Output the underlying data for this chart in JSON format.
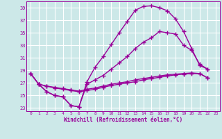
{
  "xlabel": "Windchill (Refroidissement éolien,°C)",
  "xlim": [
    -0.5,
    23.5
  ],
  "ylim": [
    22.5,
    40.0
  ],
  "yticks": [
    23,
    25,
    27,
    29,
    31,
    33,
    35,
    37,
    39
  ],
  "xticks": [
    0,
    1,
    2,
    3,
    4,
    5,
    6,
    7,
    8,
    9,
    10,
    11,
    12,
    13,
    14,
    15,
    16,
    17,
    18,
    19,
    20,
    21,
    22,
    23
  ],
  "bg_color": "#cce8e8",
  "grid_color": "#ffffff",
  "line_color": "#990099",
  "line_width": 1.0,
  "marker": "+",
  "marker_size": 4,
  "line1_x": [
    0,
    1,
    2,
    3,
    4,
    5,
    6,
    7,
    8,
    9,
    10,
    11,
    12,
    13,
    14,
    15,
    16,
    17,
    18,
    19,
    20,
    21,
    22
  ],
  "line1_y": [
    28.5,
    26.8,
    25.6,
    25.0,
    24.8,
    23.4,
    23.2,
    27.2,
    29.5,
    31.2,
    33.1,
    35.0,
    36.8,
    38.6,
    39.2,
    39.3,
    39.0,
    38.5,
    37.2,
    35.2,
    32.5,
    29.8,
    29.2
  ],
  "line2_x": [
    0,
    1,
    2,
    3,
    4,
    5,
    6,
    7,
    8,
    9,
    10,
    11,
    12,
    13,
    14,
    15,
    16,
    17,
    18,
    19,
    20,
    21,
    22
  ],
  "line2_y": [
    28.5,
    26.8,
    25.6,
    25.0,
    24.8,
    23.4,
    23.2,
    26.8,
    27.5,
    28.2,
    29.2,
    30.2,
    31.2,
    32.5,
    33.5,
    34.2,
    35.2,
    35.0,
    34.8,
    33.0,
    32.2,
    30.0,
    29.2
  ],
  "line3_x": [
    0,
    1,
    2,
    3,
    4,
    5,
    6,
    7,
    8,
    9,
    10,
    11,
    12,
    13,
    14,
    15,
    16,
    17,
    18,
    19,
    20,
    21,
    22
  ],
  "line3_y": [
    28.5,
    26.8,
    26.5,
    26.3,
    26.1,
    25.9,
    25.7,
    26.0,
    26.2,
    26.5,
    26.8,
    27.0,
    27.2,
    27.5,
    27.7,
    27.9,
    28.1,
    28.3,
    28.4,
    28.5,
    28.6,
    28.5,
    27.8
  ],
  "line4_x": [
    1,
    2,
    3,
    4,
    5,
    6,
    7,
    8,
    9,
    10,
    11,
    12,
    13,
    14,
    15,
    16,
    17,
    18,
    19,
    20,
    21,
    22
  ],
  "line4_y": [
    26.8,
    26.5,
    26.2,
    26.0,
    25.8,
    25.6,
    25.8,
    26.0,
    26.3,
    26.6,
    26.8,
    27.0,
    27.2,
    27.5,
    27.7,
    27.9,
    28.1,
    28.3,
    28.4,
    28.5,
    28.5,
    27.8
  ]
}
